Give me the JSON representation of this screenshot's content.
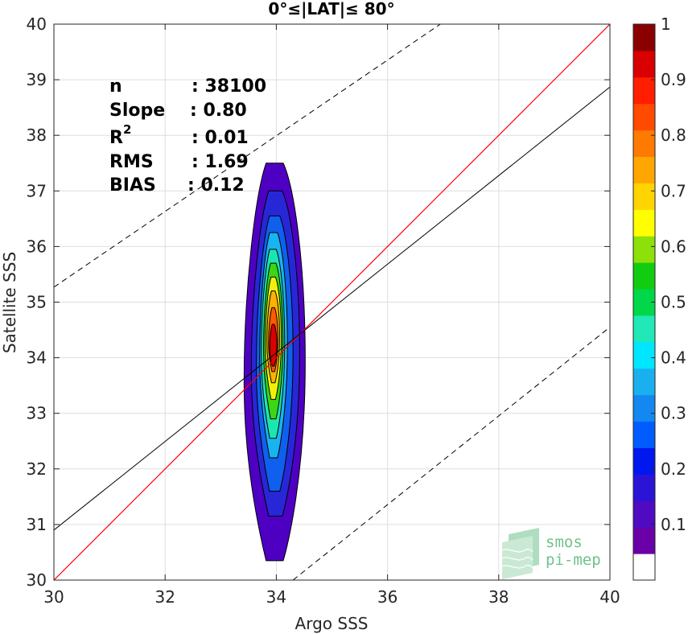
{
  "chart_data": {
    "type": "contour",
    "title": "0°≤|LAT|≤ 80°",
    "xlabel": "Argo SSS",
    "ylabel": "Satellite SSS",
    "xlim": [
      30,
      40
    ],
    "ylim": [
      30,
      40
    ],
    "xticks": [
      "30",
      "32",
      "34",
      "36",
      "38",
      "40"
    ],
    "yticks": [
      "30",
      "31",
      "32",
      "33",
      "34",
      "35",
      "36",
      "37",
      "38",
      "39",
      "40"
    ],
    "grid": true,
    "stats": [
      {
        "label": "n",
        "value": ": 38100"
      },
      {
        "label": "Slope",
        "value": ": 0.80"
      },
      {
        "label": "R",
        "sup": "2",
        "value": ": 0.01"
      },
      {
        "label": "RMS",
        "value": ": 1.69"
      },
      {
        "label": "BIAS",
        "value": ": 0.12"
      }
    ],
    "lines": {
      "identity": {
        "color": "#ff0000",
        "x": [
          30,
          40
        ],
        "y": [
          30,
          40
        ]
      },
      "regression": {
        "color": "#000000",
        "x": [
          30,
          40
        ],
        "y": [
          30.9,
          38.87
        ]
      },
      "upper_bound": {
        "style": "dashed",
        "x": [
          30,
          36.95
        ],
        "y": [
          35.27,
          40
        ]
      },
      "lower_bound": {
        "style": "dashed",
        "x": [
          34.3,
          40
        ],
        "y": [
          30,
          34.55
        ]
      }
    },
    "contours": [
      {
        "level": 0.05,
        "color": "#4e00c2",
        "x": [
          33.42,
          34.52
        ],
        "y": [
          30.35,
          37.5
        ]
      },
      {
        "level": 0.1,
        "color": "#2727d8",
        "x": [
          33.55,
          34.42
        ],
        "y": [
          31.15,
          37.0
        ]
      },
      {
        "level": 0.2,
        "color": "#1060ee",
        "x": [
          33.64,
          34.3
        ],
        "y": [
          31.6,
          36.55
        ]
      },
      {
        "level": 0.3,
        "color": "#18b4f0",
        "x": [
          33.7,
          34.2
        ],
        "y": [
          32.2,
          36.25
        ]
      },
      {
        "level": 0.4,
        "color": "#1ce6b0",
        "x": [
          33.73,
          34.15
        ],
        "y": [
          32.55,
          35.95
        ]
      },
      {
        "level": 0.5,
        "color": "#3cd614",
        "x": [
          33.77,
          34.12
        ],
        "y": [
          32.9,
          35.7
        ]
      },
      {
        "level": 0.6,
        "color": "#f0f00a",
        "x": [
          33.8,
          34.09
        ],
        "y": [
          33.25,
          35.45
        ]
      },
      {
        "level": 0.7,
        "color": "#ffb000",
        "x": [
          33.83,
          34.06
        ],
        "y": [
          33.55,
          35.2
        ]
      },
      {
        "level": 0.8,
        "color": "#ff5a00",
        "x": [
          33.86,
          34.03
        ],
        "y": [
          33.75,
          34.9
        ]
      },
      {
        "level": 0.9,
        "color": "#d80000",
        "x": [
          33.88,
          34.01
        ],
        "y": [
          33.85,
          34.6
        ]
      }
    ],
    "colorbar": {
      "ticks": [
        "0.1",
        "0.2",
        "0.3",
        "0.4",
        "0.5",
        "0.6",
        "0.7",
        "0.8",
        "0.9",
        "1"
      ],
      "tick_values": [
        0.1,
        0.2,
        0.3,
        0.4,
        0.5,
        0.6,
        0.7,
        0.8,
        0.9,
        1.0
      ],
      "colors": [
        "#ffffff",
        "#6a00a8",
        "#4f0ac2",
        "#2b14d6",
        "#0018ee",
        "#005cff",
        "#1288f0",
        "#1ab0f0",
        "#00e6ff",
        "#22e8b8",
        "#00d84a",
        "#12cc12",
        "#8ee00a",
        "#ffff00",
        "#ffd400",
        "#ffa600",
        "#ff7a00",
        "#ff4a00",
        "#ff1e00",
        "#d80000",
        "#8a0000"
      ]
    },
    "logo": {
      "line1": "smos",
      "line2": "pi-mep"
    }
  }
}
